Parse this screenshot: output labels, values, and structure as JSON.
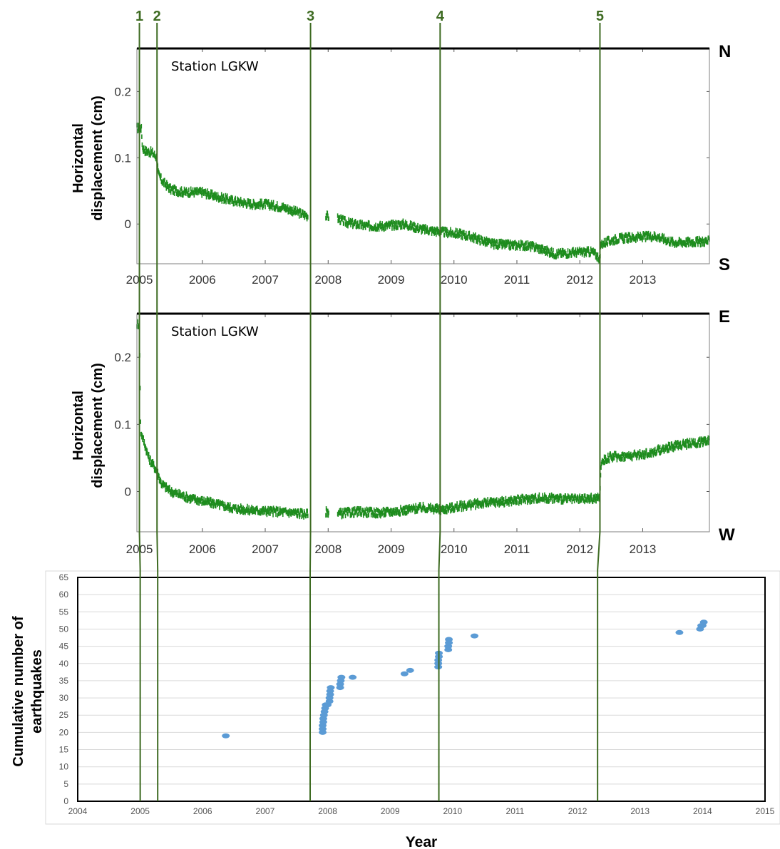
{
  "event_lines": [
    {
      "label": "1",
      "year": 2005.0
    },
    {
      "label": "2",
      "year": 2005.28
    },
    {
      "label": "3",
      "year": 2007.72
    },
    {
      "label": "4",
      "year": 2009.78
    },
    {
      "label": "5",
      "year": 2012.32
    }
  ],
  "direction_labels": {
    "north": "N",
    "south": "S",
    "east": "E",
    "west": "W"
  },
  "colors": {
    "gps": "#1e8c1e",
    "eq": "#5b9bd5",
    "event_line": "#3e6b22"
  },
  "chart_data": [
    {
      "type": "scatter",
      "annotation": "Station LGKW",
      "ylabel_lines": [
        "Horizontal",
        "displacement (cm)"
      ],
      "xlim": [
        2004.96,
        2014.06
      ],
      "ylim": [
        -0.06,
        0.265
      ],
      "xticks": [
        "2005",
        "2006",
        "2007",
        "2008",
        "2009",
        "2010",
        "2011",
        "2012",
        "2013"
      ],
      "yticks": [
        "0.2",
        "0.1",
        "0"
      ],
      "gaps": [
        [
          2007.68,
          2007.96
        ],
        [
          2008.01,
          2008.15
        ]
      ],
      "series": [
        {
          "x": [
            2005.0,
            2005.03,
            2005.05,
            2005.1,
            2005.2,
            2005.28,
            2005.3,
            2005.36,
            2005.5,
            2005.7,
            2006.0,
            2006.2,
            2006.5,
            2006.8,
            2007.0,
            2007.3,
            2007.5,
            2007.68,
            2007.96,
            2007.98,
            2008.16,
            2008.3,
            2008.6,
            2008.9,
            2009.2,
            2009.5,
            2009.8,
            2010.1,
            2010.3,
            2010.6,
            2010.9,
            2011.1,
            2011.3,
            2011.6,
            2011.9,
            2012.2,
            2012.32,
            2012.34,
            2012.6,
            2012.9,
            2013.2,
            2013.5,
            2013.8,
            2014.06
          ],
          "y": [
            0.145,
            0.145,
            0.115,
            0.11,
            0.108,
            0.1,
            0.075,
            0.065,
            0.052,
            0.048,
            0.048,
            0.042,
            0.035,
            0.03,
            0.03,
            0.025,
            0.018,
            0.012,
            0.014,
            0.012,
            0.008,
            0.002,
            -0.003,
            -0.003,
            0.0,
            -0.008,
            -0.012,
            -0.015,
            -0.02,
            -0.03,
            -0.032,
            -0.032,
            -0.035,
            -0.045,
            -0.043,
            -0.042,
            -0.052,
            -0.03,
            -0.022,
            -0.02,
            -0.018,
            -0.028,
            -0.027,
            -0.026
          ]
        }
      ]
    },
    {
      "type": "scatter",
      "annotation": "Station LGKW",
      "ylabel_lines": [
        "Horizontal",
        "displacement (cm)"
      ],
      "xlim": [
        2004.96,
        2014.06
      ],
      "ylim": [
        -0.06,
        0.265
      ],
      "xticks": [
        "2005",
        "2006",
        "2007",
        "2008",
        "2009",
        "2010",
        "2011",
        "2012",
        "2013"
      ],
      "yticks": [
        "0.2",
        "0.1",
        "0"
      ],
      "gaps": [
        [
          2007.68,
          2007.96
        ],
        [
          2008.01,
          2008.15
        ]
      ],
      "series": [
        {
          "x": [
            2004.96,
            2005.0,
            2005.02,
            2005.15,
            2005.28,
            2005.35,
            2005.5,
            2005.8,
            2006.2,
            2006.5,
            2006.8,
            2007.2,
            2007.5,
            2007.68,
            2007.96,
            2007.98,
            2008.16,
            2008.5,
            2008.8,
            2009.2,
            2009.5,
            2009.8,
            2010.1,
            2010.4,
            2010.8,
            2011.1,
            2011.3,
            2011.6,
            2011.9,
            2012.32,
            2012.34,
            2012.5,
            2012.8,
            2013.1,
            2013.3,
            2013.6,
            2013.9,
            2014.06
          ],
          "y": [
            0.25,
            0.25,
            0.09,
            0.05,
            0.03,
            0.012,
            0.0,
            -0.01,
            -0.018,
            -0.025,
            -0.028,
            -0.03,
            -0.032,
            -0.034,
            -0.03,
            -0.03,
            -0.033,
            -0.03,
            -0.032,
            -0.028,
            -0.024,
            -0.027,
            -0.022,
            -0.018,
            -0.015,
            -0.012,
            -0.01,
            -0.01,
            -0.012,
            -0.01,
            0.045,
            0.052,
            0.053,
            0.057,
            0.063,
            0.07,
            0.073,
            0.078
          ]
        }
      ]
    },
    {
      "type": "scatter",
      "ylabel_lines": [
        "Cumulative number of",
        "earthquakes"
      ],
      "xlabel": "Year",
      "xlim": [
        2004,
        2015
      ],
      "ylim": [
        0,
        65
      ],
      "xticks": [
        "2004",
        "2005",
        "2006",
        "2007",
        "2008",
        "2009",
        "2010",
        "2011",
        "2012",
        "2013",
        "2014",
        "2015"
      ],
      "yticks": [
        "0",
        "5",
        "10",
        "15",
        "20",
        "25",
        "30",
        "35",
        "40",
        "45",
        "50",
        "55",
        "60",
        "65"
      ],
      "series": [
        {
          "x": [
            2006.37,
            2007.92,
            2007.92,
            2007.92,
            2007.93,
            2007.93,
            2007.94,
            2007.95,
            2007.96,
            2007.97,
            2008.0,
            2008.03,
            2008.03,
            2008.04,
            2008.04,
            2008.05,
            2008.2,
            2008.2,
            2008.21,
            2008.22,
            2008.4,
            2009.23,
            2009.32,
            2009.77,
            2009.77,
            2009.77,
            2009.78,
            2009.78,
            2009.93,
            2009.93,
            2009.94,
            2009.94,
            2010.35,
            2013.63,
            2013.96,
            2013.98,
            2014.0,
            2014.02
          ],
          "y": [
            19,
            20,
            21,
            22,
            23,
            24,
            25,
            26,
            27,
            28,
            28,
            29,
            30,
            31,
            32,
            33,
            33,
            34,
            35,
            36,
            36,
            37,
            38,
            39,
            40,
            41,
            42,
            43,
            44,
            45,
            46,
            47,
            48,
            49,
            50,
            51,
            51,
            52
          ]
        }
      ]
    }
  ]
}
